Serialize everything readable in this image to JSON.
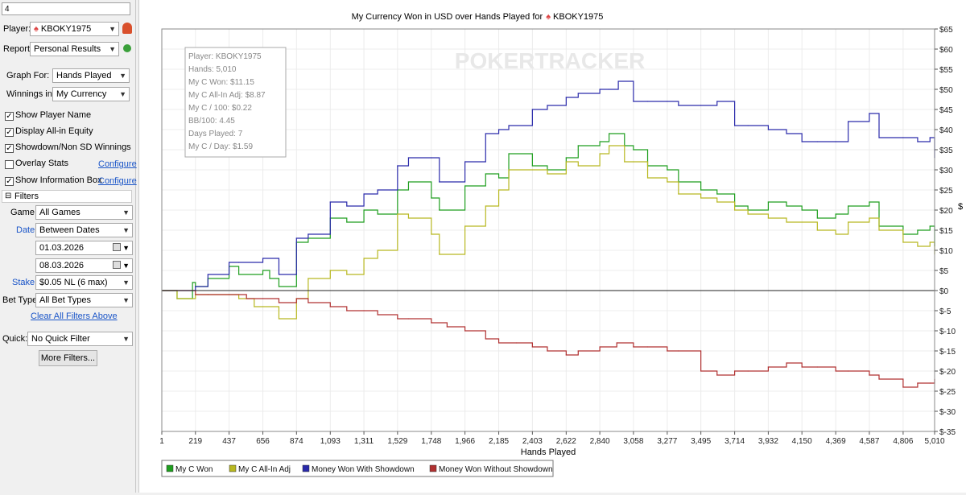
{
  "sidebar": {
    "top_value": "4",
    "player_label": "Player:",
    "player_value": "KBOKY1975",
    "report_label": "Report:",
    "report_value": "Personal Results",
    "graph_for_label": "Graph For:",
    "graph_for_value": "Hands Played",
    "winnings_in_label": "Winnings in:",
    "winnings_in_value": "My Currency",
    "checks": [
      {
        "label": "Show Player Name",
        "checked": true
      },
      {
        "label": "Display All-in Equity",
        "checked": true
      },
      {
        "label": "Showdown/Non SD Winnings",
        "checked": true
      },
      {
        "label": "Overlay Stats",
        "checked": false
      },
      {
        "label": "Show Information Box",
        "checked": true
      }
    ],
    "configure_label": "Configure",
    "filters_header": "Filters",
    "game_label": "Game:",
    "game_value": "All Games",
    "date_label": "Date:",
    "date_value": "Between Dates",
    "date_from": "01.03.2026",
    "date_to": "08.03.2026",
    "stake_label": "Stake:",
    "stake_value": "$0.05 NL (6 max)",
    "bet_type_label": "Bet Type:",
    "bet_type_value": "All Bet Types",
    "clear_filters": "Clear All Filters Above",
    "quick_label": "Quick:",
    "quick_value": "No Quick Filter",
    "more_filters": "More Filters..."
  },
  "chart_data": {
    "type": "line",
    "title": "My Currency Won in USD over Hands Played for",
    "title_player": "KBOKY1975",
    "xlabel": "Hands Played",
    "ylabel": "$",
    "watermark": "POKERTRACKER",
    "xlim": [
      1,
      5010
    ],
    "ylim": [
      -35,
      65
    ],
    "x_ticks": [
      1,
      219,
      437,
      656,
      874,
      1093,
      1311,
      1529,
      1748,
      1966,
      2185,
      2403,
      2622,
      2840,
      3058,
      3277,
      3495,
      3714,
      3932,
      4150,
      4369,
      4587,
      4806,
      5010
    ],
    "x_tick_labels": [
      "1",
      "219",
      "437",
      "656",
      "874",
      "1,093",
      "1,311",
      "1,529",
      "1,748",
      "1,966",
      "2,185",
      "2,403",
      "2,622",
      "2,840",
      "3,058",
      "3,277",
      "3,495",
      "3,714",
      "3,932",
      "4,150",
      "4,369",
      "4,587",
      "4,806",
      "5,010"
    ],
    "y_ticks": [
      65,
      60,
      55,
      50,
      45,
      40,
      35,
      30,
      25,
      20,
      15,
      10,
      5,
      0,
      -5,
      -10,
      -15,
      -20,
      -25,
      -30,
      -35
    ],
    "y_tick_labels": [
      "$65",
      "$60",
      "$55",
      "$50",
      "$45",
      "$40",
      "$35",
      "$30",
      "$25",
      "$20",
      "$15",
      "$10",
      "$5",
      "$0",
      "$-5",
      "$-10",
      "$-15",
      "$-20",
      "$-25",
      "$-30",
      "$-35"
    ],
    "legend_position": "bottom-left",
    "grid": true,
    "info_box": [
      "Player: KBOKY1975",
      "Hands: 5,010",
      "My C Won: $11.15",
      "My C All-In Adj: $8.87",
      "My C / 100: $0.22",
      "BB/100: 4.45",
      "Days Played: 7",
      "My C / Day: $1.59"
    ],
    "series": [
      {
        "name": "My C Won",
        "color": "#1e9e1e",
        "x": [
          1,
          100,
          200,
          219,
          300,
          437,
          500,
          656,
          700,
          760,
          874,
          950,
          1093,
          1200,
          1311,
          1400,
          1529,
          1600,
          1748,
          1800,
          1966,
          2100,
          2185,
          2250,
          2403,
          2500,
          2622,
          2700,
          2840,
          2900,
          3000,
          3058,
          3150,
          3277,
          3350,
          3495,
          3600,
          3714,
          3800,
          3932,
          4050,
          4150,
          4250,
          4369,
          4450,
          4587,
          4650,
          4806,
          4900,
          4980,
          5010
        ],
        "y": [
          0,
          -2,
          2,
          1,
          3,
          6,
          4,
          5,
          3,
          1,
          12,
          13,
          18,
          17,
          20,
          19,
          25,
          27,
          23,
          20,
          26,
          29,
          28,
          34,
          31,
          30,
          33,
          36,
          37,
          39,
          36,
          35,
          31,
          30,
          27,
          25,
          24,
          21,
          20,
          22,
          21,
          20,
          18,
          19,
          21,
          22,
          16,
          14,
          15,
          16,
          11
        ]
      },
      {
        "name": "My C All-In Adj",
        "color": "#b8b820",
        "x": [
          1,
          100,
          219,
          300,
          437,
          500,
          600,
          656,
          760,
          874,
          950,
          1093,
          1200,
          1311,
          1400,
          1529,
          1600,
          1748,
          1800,
          1966,
          2100,
          2185,
          2250,
          2403,
          2500,
          2622,
          2700,
          2840,
          2900,
          3000,
          3058,
          3150,
          3277,
          3350,
          3495,
          3600,
          3714,
          3800,
          3932,
          4050,
          4150,
          4250,
          4369,
          4450,
          4587,
          4650,
          4806,
          4900,
          4980,
          5010
        ],
        "y": [
          0,
          -2,
          -1,
          -1,
          -1,
          -2,
          -4,
          -4,
          -7,
          -2,
          3,
          5,
          4,
          8,
          10,
          19,
          18,
          14,
          9,
          16,
          21,
          25,
          30,
          30,
          29,
          32,
          31,
          34,
          36,
          32,
          32,
          28,
          27,
          24,
          23,
          22,
          20,
          19,
          18,
          17,
          17,
          15,
          14,
          17,
          18,
          15,
          12,
          11,
          12,
          9
        ]
      },
      {
        "name": "Money Won With Showdown",
        "color": "#2a2aaa",
        "x": [
          1,
          219,
          300,
          437,
          500,
          656,
          760,
          874,
          950,
          1093,
          1200,
          1311,
          1400,
          1529,
          1600,
          1748,
          1800,
          1966,
          2100,
          2185,
          2250,
          2403,
          2500,
          2622,
          2700,
          2840,
          2900,
          2960,
          3058,
          3150,
          3277,
          3350,
          3495,
          3600,
          3714,
          3800,
          3932,
          4050,
          4150,
          4250,
          4369,
          4450,
          4587,
          4650,
          4806,
          4900,
          4980,
          5010
        ],
        "y": [
          0,
          1,
          4,
          7,
          7,
          8,
          4,
          13,
          14,
          22,
          21,
          24,
          25,
          31,
          33,
          33,
          27,
          32,
          39,
          40,
          41,
          45,
          46,
          48,
          49,
          50,
          50,
          52,
          47,
          47,
          47,
          46,
          46,
          47,
          41,
          41,
          40,
          39,
          37,
          37,
          37,
          42,
          44,
          38,
          38,
          37,
          38,
          33
        ]
      },
      {
        "name": "Money Won Without Showdown",
        "color": "#b03030",
        "x": [
          1,
          219,
          300,
          437,
          550,
          656,
          760,
          874,
          950,
          1093,
          1200,
          1311,
          1400,
          1529,
          1600,
          1748,
          1850,
          1966,
          2100,
          2185,
          2300,
          2403,
          2500,
          2622,
          2700,
          2840,
          2950,
          3058,
          3150,
          3277,
          3350,
          3495,
          3600,
          3714,
          3800,
          3932,
          4050,
          4150,
          4250,
          4369,
          4450,
          4587,
          4650,
          4806,
          4900,
          4980,
          5010
        ],
        "y": [
          0,
          -1,
          -1,
          -1,
          -2,
          -2,
          -3,
          -2,
          -3,
          -4,
          -5,
          -5,
          -6,
          -7,
          -7,
          -8,
          -9,
          -10,
          -12,
          -13,
          -13,
          -14,
          -15,
          -16,
          -15,
          -14,
          -13,
          -14,
          -14,
          -15,
          -15,
          -20,
          -21,
          -20,
          -20,
          -19,
          -18,
          -19,
          -19,
          -20,
          -20,
          -21,
          -22,
          -24,
          -23,
          -23,
          -22
        ]
      }
    ]
  }
}
